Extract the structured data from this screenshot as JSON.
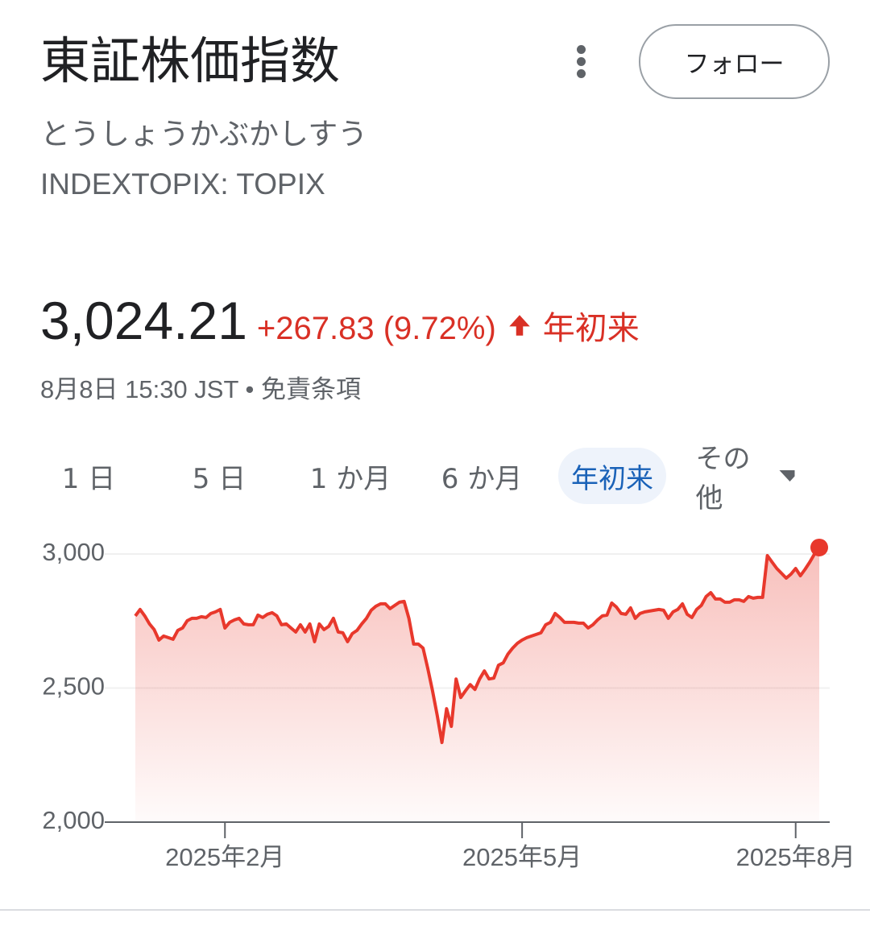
{
  "header": {
    "title": "東証株価指数",
    "reading": "とうしょうかぶかしすう",
    "ticker": "INDEXTOPIX: TOPIX",
    "follow": "フォロー"
  },
  "quote": {
    "price": "3,024.21",
    "change": "+267.83 (9.72%)",
    "period": "年初来",
    "timestamp": "8月8日 15:30 JST",
    "separator": "•",
    "disclaimer": "免責条項"
  },
  "tabs": [
    "1 日",
    "5 日",
    "1 か月",
    "6 か月",
    "年初来",
    "その他"
  ],
  "active_tab": 4,
  "chart_data": {
    "type": "line",
    "color": "#e8382c",
    "values": [
      2769,
      2793,
      2769,
      2739,
      2718,
      2679,
      2694,
      2688,
      2682,
      2715,
      2724,
      2751,
      2760,
      2760,
      2766,
      2763,
      2778,
      2784,
      2793,
      2724,
      2745,
      2754,
      2760,
      2739,
      2736,
      2736,
      2772,
      2763,
      2775,
      2781,
      2769,
      2736,
      2739,
      2724,
      2709,
      2736,
      2709,
      2739,
      2673,
      2739,
      2718,
      2730,
      2760,
      2709,
      2706,
      2673,
      2703,
      2715,
      2739,
      2760,
      2790,
      2805,
      2814,
      2814,
      2796,
      2808,
      2820,
      2823,
      2760,
      2664,
      2664,
      2649,
      2574,
      2490,
      2399,
      2297,
      2423,
      2357,
      2534,
      2465,
      2490,
      2513,
      2495,
      2534,
      2564,
      2534,
      2537,
      2585,
      2594,
      2627,
      2649,
      2667,
      2679,
      2688,
      2694,
      2700,
      2706,
      2736,
      2745,
      2778,
      2763,
      2745,
      2745,
      2745,
      2742,
      2742,
      2724,
      2736,
      2754,
      2769,
      2772,
      2817,
      2802,
      2778,
      2775,
      2799,
      2760,
      2778,
      2784,
      2787,
      2790,
      2793,
      2790,
      2760,
      2784,
      2793,
      2814,
      2775,
      2763,
      2793,
      2808,
      2841,
      2856,
      2832,
      2832,
      2820,
      2820,
      2829,
      2829,
      2823,
      2841,
      2835,
      2838,
      2838,
      2994,
      2970,
      2946,
      2928,
      2910,
      2925,
      2946,
      2919,
      2943,
      2970,
      3000,
      3024.21
    ],
    "ylim": [
      2000,
      3000
    ],
    "yticks": [
      {
        "value": 2000,
        "label": "2,000"
      },
      {
        "value": 2500,
        "label": "2,500"
      },
      {
        "value": 3000,
        "label": "3,000"
      }
    ],
    "xticks": [
      {
        "value": 19,
        "label": "2025年2月"
      },
      {
        "value": 82,
        "label": "2025年5月"
      },
      {
        "value": 140,
        "label": "2025年8月"
      }
    ],
    "grid": true
  }
}
